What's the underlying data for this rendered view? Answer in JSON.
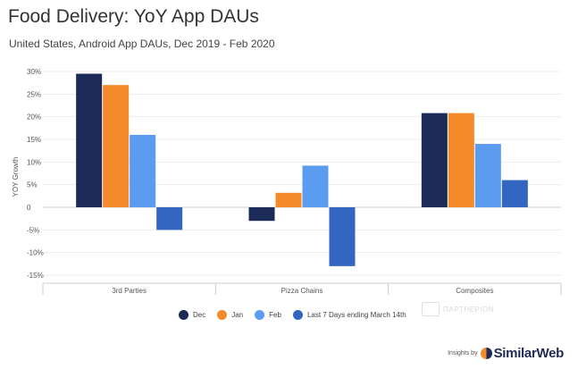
{
  "chart_data": {
    "type": "bar",
    "title": "Food Delivery: YoY App DAUs",
    "subtitle": "United States, Android App DAUs, Dec 2019 - Feb 2020",
    "ylabel": "YOY Growth",
    "xlabel": "",
    "ylim": [
      -15,
      30
    ],
    "yticks": [
      "30%",
      "25%",
      "20%",
      "15%",
      "10%",
      "5%",
      "0",
      "-5%",
      "-10%",
      "-15%"
    ],
    "categories": [
      "3rd Parties",
      "Pizza Chains",
      "Composites"
    ],
    "series": [
      {
        "name": "Dec",
        "color": "#1b2a57",
        "values": [
          29.5,
          -3,
          20.8
        ]
      },
      {
        "name": "Jan",
        "color": "#f58a2a",
        "values": [
          27,
          3.2,
          20.8
        ]
      },
      {
        "name": "Feb",
        "color": "#5b9bf0",
        "values": [
          16,
          9.2,
          14
        ]
      },
      {
        "name": "Last 7 Days ending March 14th",
        "color": "#3366c0",
        "values": [
          -5,
          -13,
          6
        ]
      }
    ],
    "grid": true,
    "legend_position": "bottom"
  },
  "watermark": "ΠΑΡΤΗΕΡΙΟΝ",
  "branding": {
    "prefix": "Insights by",
    "name": "SimilarWeb"
  }
}
